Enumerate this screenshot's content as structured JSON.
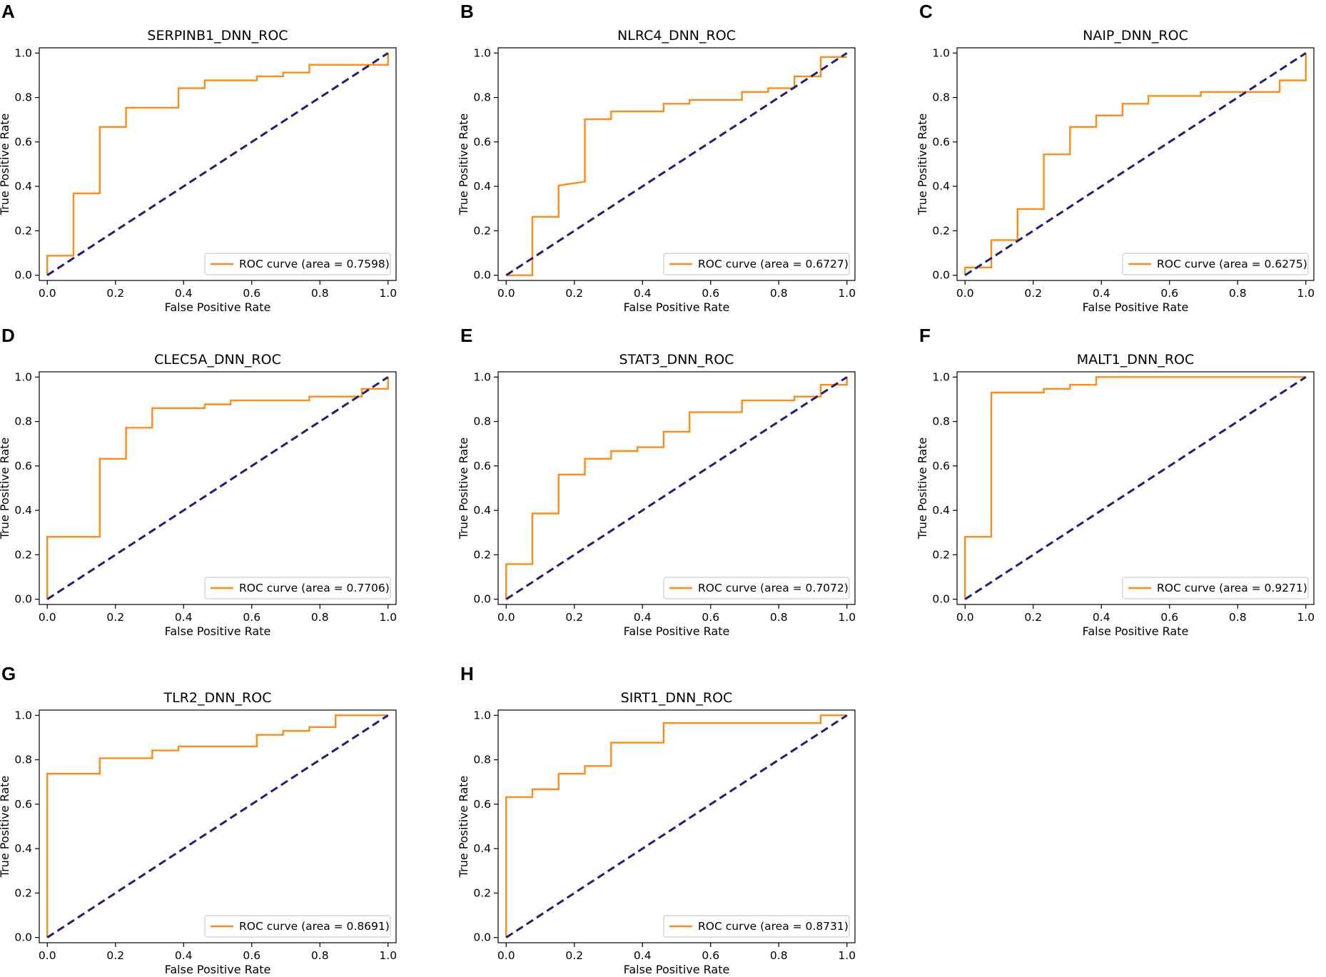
{
  "colors": {
    "roc": "#ff8c1a",
    "diagonal": "#1f1f7a"
  },
  "chart_data": [
    {
      "type": "line",
      "panel": "A",
      "title": "SERPINB1_DNN_ROC",
      "xlabel": "False Positive Rate",
      "ylabel": "True Positive Rate",
      "xlim": [
        0,
        1
      ],
      "ylim": [
        0,
        1
      ],
      "xticks": [
        "0.0",
        "0.2",
        "0.4",
        "0.6",
        "0.8",
        "1.0"
      ],
      "yticks": [
        "0.0",
        "0.2",
        "0.4",
        "0.6",
        "0.8",
        "1.0"
      ],
      "legend": "ROC curve (area = 0.7598)",
      "legend_loc": "lower right",
      "series": [
        {
          "name": "ROC curve (area = 0.7598)",
          "style": "step",
          "x": [
            0,
            0,
            0.077,
            0.077,
            0.154,
            0.154,
            0.231,
            0.231,
            0.385,
            0.385,
            0.462,
            0.462,
            0.615,
            0.615,
            0.692,
            0.692,
            0.769,
            0.769,
            1.0,
            1.0
          ],
          "y": [
            0,
            0.088,
            0.088,
            0.368,
            0.368,
            0.667,
            0.667,
            0.754,
            0.754,
            0.842,
            0.842,
            0.877,
            0.877,
            0.895,
            0.895,
            0.912,
            0.912,
            0.947,
            0.947,
            1.0
          ]
        },
        {
          "name": "chance",
          "style": "dashed",
          "x": [
            0,
            1
          ],
          "y": [
            0,
            1
          ]
        }
      ]
    },
    {
      "type": "line",
      "panel": "B",
      "title": "NLRC4_DNN_ROC",
      "xlabel": "False Positive Rate",
      "ylabel": "True Positive Rate",
      "xlim": [
        0,
        1
      ],
      "ylim": [
        0,
        1
      ],
      "xticks": [
        "0.0",
        "0.2",
        "0.4",
        "0.6",
        "0.8",
        "1.0"
      ],
      "yticks": [
        "0.0",
        "0.2",
        "0.4",
        "0.6",
        "0.8",
        "1.0"
      ],
      "legend": "ROC curve (area = 0.6727)",
      "legend_loc": "lower right",
      "series": [
        {
          "name": "ROC curve (area = 0.6727)",
          "style": "step",
          "x": [
            0,
            0.077,
            0.077,
            0.154,
            0.154,
            0.231,
            0.231,
            0.308,
            0.308,
            0.462,
            0.462,
            0.538,
            0.538,
            0.692,
            0.692,
            0.769,
            0.769,
            0.846,
            0.846,
            0.923,
            0.923,
            1.0
          ],
          "y": [
            0,
            0,
            0.263,
            0.263,
            0.404,
            0.421,
            0.702,
            0.702,
            0.737,
            0.737,
            0.772,
            0.772,
            0.789,
            0.789,
            0.825,
            0.825,
            0.842,
            0.842,
            0.895,
            0.895,
            0.982,
            0.982
          ]
        },
        {
          "name": "chance",
          "style": "dashed",
          "x": [
            0,
            1
          ],
          "y": [
            0,
            1
          ]
        }
      ]
    },
    {
      "type": "line",
      "panel": "C",
      "title": "NAIP_DNN_ROC",
      "xlabel": "False Positive Rate",
      "ylabel": "True Positive Rate",
      "xlim": [
        0,
        1
      ],
      "ylim": [
        0,
        1
      ],
      "xticks": [
        "0.0",
        "0.2",
        "0.4",
        "0.6",
        "0.8",
        "1.0"
      ],
      "yticks": [
        "0.0",
        "0.2",
        "0.4",
        "0.6",
        "0.8",
        "1.0"
      ],
      "legend": "ROC curve (area = 0.6275)",
      "legend_loc": "lower right",
      "series": [
        {
          "name": "ROC curve (area = 0.6275)",
          "style": "step",
          "x": [
            0,
            0,
            0.077,
            0.077,
            0.154,
            0.154,
            0.231,
            0.231,
            0.308,
            0.308,
            0.385,
            0.385,
            0.462,
            0.462,
            0.538,
            0.538,
            0.692,
            0.692,
            0.923,
            0.923,
            1.0,
            1.0
          ],
          "y": [
            0,
            0.035,
            0.035,
            0.158,
            0.158,
            0.298,
            0.298,
            0.544,
            0.544,
            0.667,
            0.667,
            0.719,
            0.719,
            0.772,
            0.772,
            0.807,
            0.807,
            0.825,
            0.825,
            0.877,
            0.877,
            1.0
          ]
        },
        {
          "name": "chance",
          "style": "dashed",
          "x": [
            0,
            1
          ],
          "y": [
            0,
            1
          ]
        }
      ]
    },
    {
      "type": "line",
      "panel": "D",
      "title": "CLEC5A_DNN_ROC",
      "xlabel": "False Positive Rate",
      "ylabel": "True Positive Rate",
      "xlim": [
        0,
        1
      ],
      "ylim": [
        0,
        1
      ],
      "xticks": [
        "0.0",
        "0.2",
        "0.4",
        "0.6",
        "0.8",
        "1.0"
      ],
      "yticks": [
        "0.0",
        "0.2",
        "0.4",
        "0.6",
        "0.8",
        "1.0"
      ],
      "legend": "ROC curve (area = 0.7706)",
      "legend_loc": "lower right",
      "series": [
        {
          "name": "ROC curve (area = 0.7706)",
          "style": "step",
          "x": [
            0,
            0,
            0.154,
            0.154,
            0.231,
            0.231,
            0.308,
            0.308,
            0.462,
            0.462,
            0.538,
            0.538,
            0.769,
            0.769,
            0.923,
            0.923,
            1.0,
            1.0
          ],
          "y": [
            0,
            0.281,
            0.281,
            0.632,
            0.632,
            0.772,
            0.772,
            0.86,
            0.86,
            0.877,
            0.877,
            0.895,
            0.895,
            0.912,
            0.912,
            0.947,
            0.947,
            1.0
          ]
        },
        {
          "name": "chance",
          "style": "dashed",
          "x": [
            0,
            1
          ],
          "y": [
            0,
            1
          ]
        }
      ]
    },
    {
      "type": "line",
      "panel": "E",
      "title": "STAT3_DNN_ROC",
      "xlabel": "False Positive Rate",
      "ylabel": "True Positive Rate",
      "xlim": [
        0,
        1
      ],
      "ylim": [
        0,
        1
      ],
      "xticks": [
        "0.0",
        "0.2",
        "0.4",
        "0.6",
        "0.8",
        "1.0"
      ],
      "yticks": [
        "0.0",
        "0.2",
        "0.4",
        "0.6",
        "0.8",
        "1.0"
      ],
      "legend": "ROC curve (area = 0.7072)",
      "legend_loc": "lower right",
      "series": [
        {
          "name": "ROC curve (area = 0.7072)",
          "style": "step",
          "x": [
            0,
            0,
            0.077,
            0.077,
            0.154,
            0.154,
            0.231,
            0.231,
            0.308,
            0.308,
            0.385,
            0.385,
            0.462,
            0.462,
            0.538,
            0.538,
            0.692,
            0.692,
            0.846,
            0.846,
            0.923,
            0.923,
            1.0,
            1.0
          ],
          "y": [
            0,
            0.158,
            0.158,
            0.386,
            0.386,
            0.561,
            0.561,
            0.632,
            0.632,
            0.667,
            0.667,
            0.684,
            0.684,
            0.754,
            0.754,
            0.842,
            0.842,
            0.895,
            0.895,
            0.912,
            0.912,
            0.965,
            0.965,
            1.0
          ]
        },
        {
          "name": "chance",
          "style": "dashed",
          "x": [
            0,
            1
          ],
          "y": [
            0,
            1
          ]
        }
      ]
    },
    {
      "type": "line",
      "panel": "F",
      "title": "MALT1_DNN_ROC",
      "xlabel": "False Positive Rate",
      "ylabel": "True Positive Rate",
      "xlim": [
        0,
        1
      ],
      "ylim": [
        0,
        1
      ],
      "xticks": [
        "0.0",
        "0.2",
        "0.4",
        "0.6",
        "0.8",
        "1.0"
      ],
      "yticks": [
        "0.0",
        "0.2",
        "0.4",
        "0.6",
        "0.8",
        "1.0"
      ],
      "legend": "ROC curve (area = 0.9271)",
      "legend_loc": "lower right",
      "series": [
        {
          "name": "ROC curve (area = 0.9271)",
          "style": "step",
          "x": [
            0,
            0,
            0.077,
            0.077,
            0.231,
            0.231,
            0.308,
            0.308,
            0.385,
            0.385,
            1.0
          ],
          "y": [
            0,
            0.281,
            0.281,
            0.93,
            0.93,
            0.947,
            0.947,
            0.965,
            0.965,
            1.0,
            1.0
          ]
        },
        {
          "name": "chance",
          "style": "dashed",
          "x": [
            0,
            1
          ],
          "y": [
            0,
            1
          ]
        }
      ]
    },
    {
      "type": "line",
      "panel": "G",
      "title": "TLR2_DNN_ROC",
      "xlabel": "False Positive Rate",
      "ylabel": "True Positive Rate",
      "xlim": [
        0,
        1
      ],
      "ylim": [
        0,
        1
      ],
      "xticks": [
        "0.0",
        "0.2",
        "0.4",
        "0.6",
        "0.8",
        "1.0"
      ],
      "yticks": [
        "0.0",
        "0.2",
        "0.4",
        "0.6",
        "0.8",
        "1.0"
      ],
      "legend": "ROC curve (area = 0.8691)",
      "legend_loc": "lower right",
      "series": [
        {
          "name": "ROC curve (area = 0.8691)",
          "style": "step",
          "x": [
            0,
            0,
            0.154,
            0.154,
            0.308,
            0.308,
            0.385,
            0.385,
            0.615,
            0.615,
            0.692,
            0.692,
            0.769,
            0.769,
            0.846,
            0.846,
            1.0
          ],
          "y": [
            0,
            0.737,
            0.737,
            0.807,
            0.807,
            0.842,
            0.842,
            0.86,
            0.86,
            0.912,
            0.912,
            0.93,
            0.93,
            0.947,
            0.947,
            1.0,
            1.0
          ]
        },
        {
          "name": "chance",
          "style": "dashed",
          "x": [
            0,
            1
          ],
          "y": [
            0,
            1
          ]
        }
      ]
    },
    {
      "type": "line",
      "panel": "H",
      "title": "SIRT1_DNN_ROC",
      "xlabel": "False Positive Rate",
      "ylabel": "True Positive Rate",
      "xlim": [
        0,
        1
      ],
      "ylim": [
        0,
        1
      ],
      "xticks": [
        "0.0",
        "0.2",
        "0.4",
        "0.6",
        "0.8",
        "1.0"
      ],
      "yticks": [
        "0.0",
        "0.2",
        "0.4",
        "0.6",
        "0.8",
        "1.0"
      ],
      "legend": "ROC curve (area = 0.8731)",
      "legend_loc": "lower right",
      "series": [
        {
          "name": "ROC curve (area = 0.8731)",
          "style": "step",
          "x": [
            0,
            0,
            0.077,
            0.077,
            0.154,
            0.154,
            0.231,
            0.231,
            0.308,
            0.308,
            0.462,
            0.462,
            0.923,
            0.923,
            1.0
          ],
          "y": [
            0,
            0.632,
            0.632,
            0.667,
            0.667,
            0.737,
            0.737,
            0.772,
            0.772,
            0.877,
            0.877,
            0.965,
            0.965,
            1.0,
            1.0
          ]
        },
        {
          "name": "chance",
          "style": "dashed",
          "x": [
            0,
            1
          ],
          "y": [
            0,
            1
          ]
        }
      ]
    }
  ]
}
